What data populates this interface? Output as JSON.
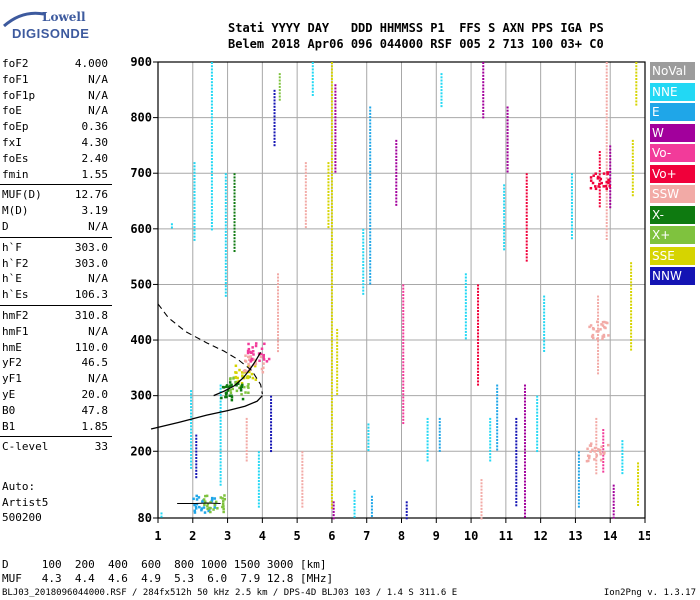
{
  "logo": {
    "line1": "Lowell",
    "line2": "DIGISONDE"
  },
  "header": {
    "labels": "Stati YYYY DAY   DDD HHMMSS P1  FFS S AXN PPS IGA PS",
    "values": "Belem 2018 Apr06 096 044000 RSF 005 2 713 100 03+ C0"
  },
  "params": {
    "group1": [
      {
        "name": "foF2",
        "value": "4.000"
      },
      {
        "name": "foF1",
        "value": "N/A"
      },
      {
        "name": "foF1p",
        "value": "N/A"
      },
      {
        "name": "foE",
        "value": "N/A"
      },
      {
        "name": "foEp",
        "value": "0.36"
      },
      {
        "name": "fxI",
        "value": "4.30"
      },
      {
        "name": "foEs",
        "value": "2.40"
      },
      {
        "name": "fmin",
        "value": "1.55"
      }
    ],
    "group2": [
      {
        "name": "MUF(D)",
        "value": "12.76"
      },
      {
        "name": "M(D)",
        "value": "3.19"
      },
      {
        "name": "D",
        "value": "N/A"
      }
    ],
    "group3": [
      {
        "name": "h`F",
        "value": "303.0"
      },
      {
        "name": "h`F2",
        "value": "303.0"
      },
      {
        "name": "h`E",
        "value": "N/A"
      },
      {
        "name": "h`Es",
        "value": "106.3"
      }
    ],
    "group4": [
      {
        "name": "hmF2",
        "value": "310.8"
      },
      {
        "name": "hmF1",
        "value": "N/A"
      },
      {
        "name": "hmE",
        "value": "110.0"
      },
      {
        "name": "yF2",
        "value": "46.5"
      },
      {
        "name": "yF1",
        "value": "N/A"
      },
      {
        "name": "yE",
        "value": "20.0"
      },
      {
        "name": "B0",
        "value": "47.8"
      },
      {
        "name": "B1",
        "value": "1.85"
      }
    ],
    "group5": [
      {
        "name": "C-level",
        "value": "33"
      }
    ]
  },
  "autoscaling": {
    "line1": "Auto:",
    "line2": "Artist5",
    "line3": "500200"
  },
  "legend": [
    {
      "label": "NoVal",
      "color": "#9c9c9c"
    },
    {
      "label": "NNE",
      "color": "#22d8f4"
    },
    {
      "label": "E",
      "color": "#1fa6e8"
    },
    {
      "label": "W",
      "color": "#a2009c"
    },
    {
      "label": "Vo-",
      "color": "#f23b9a"
    },
    {
      "label": "Vo+",
      "color": "#f0003a"
    },
    {
      "label": "SSW",
      "color": "#f2aaa6"
    },
    {
      "label": "X-",
      "color": "#0e7a10"
    },
    {
      "label": "X+",
      "color": "#7fc23e"
    },
    {
      "label": "SSE",
      "color": "#d6d400"
    },
    {
      "label": "NNW",
      "color": "#1414b4"
    }
  ],
  "chart_data": {
    "type": "scatter",
    "title": "",
    "xlabel": "",
    "ylabel": "",
    "xlim": [
      1,
      15
    ],
    "ylim": [
      80,
      900
    ],
    "xticks": [
      1,
      2,
      3,
      4,
      5,
      6,
      7,
      8,
      9,
      10,
      11,
      12,
      13,
      14,
      15
    ],
    "yticks": [
      80,
      200,
      300,
      400,
      500,
      600,
      700,
      800,
      900
    ],
    "xtick_labels": [
      "1",
      "2",
      "3",
      "4",
      "5",
      "6",
      "7",
      "8",
      "9",
      "10",
      "11",
      "12",
      "13",
      "14",
      "15"
    ],
    "ytick_labels": [
      "80",
      "200",
      "300",
      "400",
      "500",
      "600",
      "700",
      "800",
      "900"
    ],
    "grid": true,
    "legend_position": "right",
    "profile_solid": [
      [
        0.8,
        240
      ],
      [
        1.6,
        252
      ],
      [
        2.4,
        265
      ],
      [
        3.0,
        273
      ],
      [
        3.5,
        281
      ],
      [
        3.85,
        290
      ],
      [
        4.0,
        300
      ]
    ],
    "profile_dashed": [
      [
        1.0,
        465
      ],
      [
        1.3,
        440
      ],
      [
        1.8,
        415
      ],
      [
        2.4,
        395
      ],
      [
        2.9,
        380
      ],
      [
        3.3,
        365
      ],
      [
        3.7,
        345
      ],
      [
        3.95,
        320
      ],
      [
        4.0,
        303
      ]
    ],
    "trace_fitted": [
      [
        2.6,
        300
      ],
      [
        2.9,
        308
      ],
      [
        3.2,
        318
      ],
      [
        3.45,
        332
      ],
      [
        3.65,
        348
      ],
      [
        3.8,
        362
      ],
      [
        3.95,
        378
      ]
    ],
    "es_trace": [
      [
        1.55,
        106
      ],
      [
        1.8,
        106
      ],
      [
        2.1,
        106
      ],
      [
        2.4,
        107
      ],
      [
        2.8,
        106
      ]
    ],
    "echo_columns": [
      {
        "x": 1.1,
        "y0": 80,
        "y1": 90,
        "color": "#22d8f4"
      },
      {
        "x": 1.4,
        "y0": 600,
        "y1": 610,
        "color": "#22d8f4"
      },
      {
        "x": 1.95,
        "y0": 170,
        "y1": 310,
        "color": "#22d8f4"
      },
      {
        "x": 2.05,
        "y0": 580,
        "y1": 720,
        "color": "#22d8f4"
      },
      {
        "x": 2.1,
        "y0": 150,
        "y1": 230,
        "color": "#1414b4"
      },
      {
        "x": 2.55,
        "y0": 600,
        "y1": 900,
        "color": "#22d8f4"
      },
      {
        "x": 2.8,
        "y0": 140,
        "y1": 320,
        "color": "#22d8f4"
      },
      {
        "x": 2.95,
        "y0": 480,
        "y1": 700,
        "color": "#22d8f4"
      },
      {
        "x": 3.2,
        "y0": 560,
        "y1": 700,
        "color": "#0e7a10"
      },
      {
        "x": 3.55,
        "y0": 180,
        "y1": 260,
        "color": "#f2aaa6"
      },
      {
        "x": 3.9,
        "y0": 100,
        "y1": 200,
        "color": "#22d8f4"
      },
      {
        "x": 4.25,
        "y0": 200,
        "y1": 300,
        "color": "#1414b4"
      },
      {
        "x": 4.35,
        "y0": 750,
        "y1": 850,
        "color": "#1414b4"
      },
      {
        "x": 4.45,
        "y0": 380,
        "y1": 520,
        "color": "#f2aaa6"
      },
      {
        "x": 4.5,
        "y0": 830,
        "y1": 880,
        "color": "#7fc23e"
      },
      {
        "x": 5.15,
        "y0": 100,
        "y1": 200,
        "color": "#f2aaa6"
      },
      {
        "x": 5.25,
        "y0": 600,
        "y1": 720,
        "color": "#f2aaa6"
      },
      {
        "x": 5.45,
        "y0": 840,
        "y1": 900,
        "color": "#22d8f4"
      },
      {
        "x": 5.9,
        "y0": 600,
        "y1": 720,
        "color": "#d6d400"
      },
      {
        "x": 6.0,
        "y0": 100,
        "y1": 900,
        "color": "#d6d400"
      },
      {
        "x": 6.05,
        "y0": 80,
        "y1": 110,
        "color": "#a2009c"
      },
      {
        "x": 6.1,
        "y0": 700,
        "y1": 860,
        "color": "#a2009c"
      },
      {
        "x": 6.15,
        "y0": 300,
        "y1": 420,
        "color": "#d6d400"
      },
      {
        "x": 6.65,
        "y0": 80,
        "y1": 130,
        "color": "#22d8f4"
      },
      {
        "x": 6.9,
        "y0": 480,
        "y1": 600,
        "color": "#22d8f4"
      },
      {
        "x": 7.05,
        "y0": 200,
        "y1": 250,
        "color": "#22d8f4"
      },
      {
        "x": 7.1,
        "y0": 500,
        "y1": 820,
        "color": "#1fa6e8"
      },
      {
        "x": 7.15,
        "y0": 80,
        "y1": 120,
        "color": "#1fa6e8"
      },
      {
        "x": 7.85,
        "y0": 640,
        "y1": 760,
        "color": "#a2009c"
      },
      {
        "x": 8.05,
        "y0": 250,
        "y1": 500,
        "color": "#f23b9a"
      },
      {
        "x": 8.15,
        "y0": 80,
        "y1": 110,
        "color": "#1414b4"
      },
      {
        "x": 8.75,
        "y0": 180,
        "y1": 260,
        "color": "#22d8f4"
      },
      {
        "x": 9.1,
        "y0": 200,
        "y1": 260,
        "color": "#1fa6e8"
      },
      {
        "x": 9.15,
        "y0": 820,
        "y1": 880,
        "color": "#22d8f4"
      },
      {
        "x": 9.85,
        "y0": 400,
        "y1": 520,
        "color": "#22d8f4"
      },
      {
        "x": 10.2,
        "y0": 320,
        "y1": 500,
        "color": "#f0003a"
      },
      {
        "x": 10.3,
        "y0": 80,
        "y1": 150,
        "color": "#f2aaa6"
      },
      {
        "x": 10.35,
        "y0": 800,
        "y1": 900,
        "color": "#a2009c"
      },
      {
        "x": 10.55,
        "y0": 180,
        "y1": 260,
        "color": "#22d8f4"
      },
      {
        "x": 10.75,
        "y0": 200,
        "y1": 320,
        "color": "#1fa6e8"
      },
      {
        "x": 10.95,
        "y0": 560,
        "y1": 680,
        "color": "#22d8f4"
      },
      {
        "x": 11.05,
        "y0": 700,
        "y1": 820,
        "color": "#a2009c"
      },
      {
        "x": 11.3,
        "y0": 100,
        "y1": 260,
        "color": "#1414b4"
      },
      {
        "x": 11.55,
        "y0": 80,
        "y1": 320,
        "color": "#a2009c"
      },
      {
        "x": 11.6,
        "y0": 540,
        "y1": 700,
        "color": "#f0003a"
      },
      {
        "x": 11.9,
        "y0": 200,
        "y1": 300,
        "color": "#22d8f4"
      },
      {
        "x": 12.1,
        "y0": 380,
        "y1": 480,
        "color": "#22d8f4"
      },
      {
        "x": 12.9,
        "y0": 580,
        "y1": 700,
        "color": "#22d8f4"
      },
      {
        "x": 13.1,
        "y0": 100,
        "y1": 200,
        "color": "#1fa6e8"
      },
      {
        "x": 13.6,
        "y0": 160,
        "y1": 260,
        "color": "#f2aaa6"
      },
      {
        "x": 13.65,
        "y0": 340,
        "y1": 480,
        "color": "#f2aaa6"
      },
      {
        "x": 13.7,
        "y0": 640,
        "y1": 740,
        "color": "#f0003a"
      },
      {
        "x": 13.8,
        "y0": 160,
        "y1": 240,
        "color": "#f23b9a"
      },
      {
        "x": 13.9,
        "y0": 580,
        "y1": 900,
        "color": "#f2aaa6"
      },
      {
        "x": 14.0,
        "y0": 640,
        "y1": 750,
        "color": "#a2009c"
      },
      {
        "x": 14.1,
        "y0": 80,
        "y1": 140,
        "color": "#a2009c"
      },
      {
        "x": 14.35,
        "y0": 160,
        "y1": 220,
        "color": "#22d8f4"
      },
      {
        "x": 14.6,
        "y0": 380,
        "y1": 540,
        "color": "#d6d400"
      },
      {
        "x": 14.65,
        "y0": 660,
        "y1": 760,
        "color": "#d6d400"
      },
      {
        "x": 14.75,
        "y0": 820,
        "y1": 900,
        "color": "#d6d400"
      },
      {
        "x": 14.8,
        "y0": 100,
        "y1": 180,
        "color": "#d6d400"
      }
    ],
    "echo_clusters": [
      {
        "x": 3.3,
        "y": 320,
        "color": "#7fc23e"
      },
      {
        "x": 3.5,
        "y": 340,
        "color": "#d6d400"
      },
      {
        "x": 3.1,
        "y": 310,
        "color": "#0e7a10"
      },
      {
        "x": 3.7,
        "y": 360,
        "color": "#f2aaa6"
      },
      {
        "x": 3.85,
        "y": 380,
        "color": "#f23b9a"
      },
      {
        "x": 2.3,
        "y": 108,
        "color": "#1fa6e8"
      },
      {
        "x": 2.6,
        "y": 109,
        "color": "#7fc23e"
      },
      {
        "x": 13.7,
        "y": 690,
        "color": "#f0003a"
      },
      {
        "x": 13.65,
        "y": 420,
        "color": "#f2aaa6"
      },
      {
        "x": 13.6,
        "y": 200,
        "color": "#f2aaa6"
      }
    ]
  },
  "distance_table": {
    "row1": "D     100  200  400  600  800 1000 1500 3000 [km]",
    "row2": "MUF   4.3  4.4  4.6  4.9  5.3  6.0  7.9 12.8 [MHz]"
  },
  "footer": {
    "info": "BLJ03_2018096044000.RSF / 284fx512h 50 kHz 2.5 km / DPS-4D BLJ03 103 / 1.4 S 311.6 E",
    "version": "Ion2Png v. 1.3.17"
  }
}
